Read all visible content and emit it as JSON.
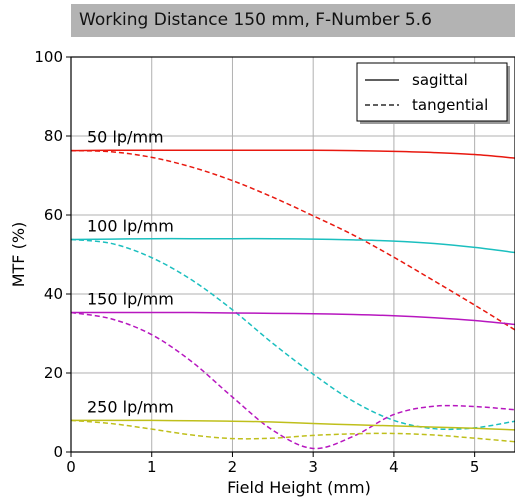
{
  "header": {
    "title": "Working Distance 150 mm, F-Number 5.6"
  },
  "chart_data": {
    "type": "line",
    "title": "Working Distance 150 mm, F-Number 5.6",
    "xlabel": "Field Height (mm)",
    "ylabel": "MTF (%)",
    "xlim": [
      0,
      5.5
    ],
    "ylim": [
      0,
      100
    ],
    "xticks": [
      0,
      1,
      2,
      3,
      4,
      5
    ],
    "yticks": [
      0,
      20,
      40,
      60,
      80,
      100
    ],
    "grid": true,
    "legend": {
      "position": "top-right",
      "entries": [
        {
          "label": "sagittal",
          "style": "solid"
        },
        {
          "label": "tangential",
          "style": "dashed"
        }
      ]
    },
    "x": [
      0,
      0.5,
      1,
      1.5,
      2,
      2.5,
      3,
      3.5,
      4,
      4.5,
      5,
      5.5
    ],
    "groups": [
      {
        "label": "50 lp/mm",
        "color": "#e8180f",
        "sagittal": [
          76.3,
          76.4,
          76.4,
          76.4,
          76.4,
          76.4,
          76.4,
          76.3,
          76.1,
          75.8,
          75.3,
          74.4
        ],
        "tangential": [
          76.3,
          76.0,
          74.6,
          72.1,
          68.7,
          64.5,
          59.8,
          54.9,
          49.3,
          43.3,
          37.2,
          30.9
        ]
      },
      {
        "label": "100 lp/mm",
        "color": "#1bbfbf",
        "sagittal": [
          53.8,
          53.9,
          54.0,
          54.0,
          54.0,
          54.0,
          53.9,
          53.7,
          53.4,
          52.8,
          51.8,
          50.5
        ],
        "tangential": [
          53.8,
          52.8,
          49.2,
          43.5,
          36.0,
          27.5,
          19.7,
          12.8,
          8.0,
          5.9,
          6.1,
          7.8
        ]
      },
      {
        "label": "150 lp/mm",
        "color": "#b717bf",
        "sagittal": [
          35.3,
          35.3,
          35.3,
          35.3,
          35.2,
          35.1,
          35.0,
          34.8,
          34.5,
          34.0,
          33.3,
          32.3
        ],
        "tangential": [
          35.3,
          33.7,
          29.7,
          22.8,
          13.9,
          5.5,
          0.9,
          4.0,
          9.5,
          11.6,
          11.5,
          10.7
        ]
      },
      {
        "label": "250 lp/mm",
        "color": "#bfbf1b",
        "sagittal": [
          8.0,
          8.0,
          8.0,
          7.9,
          7.8,
          7.6,
          7.2,
          6.9,
          6.6,
          6.3,
          6.0,
          5.6
        ],
        "tangential": [
          8.0,
          7.2,
          5.8,
          4.3,
          3.4,
          3.5,
          4.2,
          4.6,
          4.7,
          4.3,
          3.5,
          2.6
        ]
      }
    ]
  }
}
